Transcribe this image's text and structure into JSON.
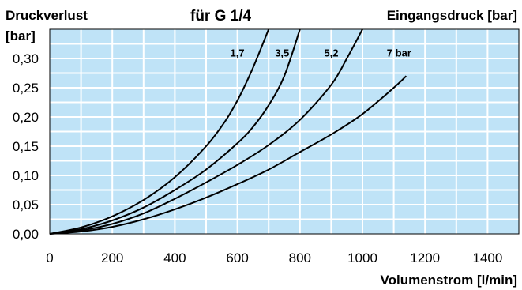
{
  "chart_data": {
    "type": "line",
    "title": "für G 1/4",
    "ylabel_line1": "Druckverlust",
    "ylabel_line2": "[bar]",
    "xlabel": "Volumenstrom [l/min]",
    "legend_title": "Eingangsdruck [bar]",
    "xlim": [
      0,
      1500
    ],
    "ylim": [
      0,
      0.35
    ],
    "x_ticks": [
      0,
      200,
      400,
      600,
      800,
      1000,
      1200,
      1400
    ],
    "x_tick_labels": [
      "0",
      "200",
      "400",
      "600",
      "800",
      "1000",
      "1200",
      "1400"
    ],
    "y_ticks": [
      0,
      0.05,
      0.1,
      0.15,
      0.2,
      0.25,
      0.3
    ],
    "y_tick_labels": [
      "0,00",
      "0,05",
      "0,10",
      "0,15",
      "0,20",
      "0,25",
      "0,30"
    ],
    "grid": true,
    "colors": {
      "plot_background": "#bfe3f7",
      "grid": "#ffffff",
      "curve": "#000000"
    },
    "series": [
      {
        "name": "1,7",
        "label": "1,7",
        "label_at": [
          600,
          0.31
        ],
        "x": [
          0,
          100,
          200,
          300,
          400,
          500,
          560,
          600,
          640,
          670,
          700
        ],
        "y": [
          0,
          0.011,
          0.03,
          0.058,
          0.097,
          0.15,
          0.192,
          0.228,
          0.272,
          0.31,
          0.35
        ]
      },
      {
        "name": "3,5",
        "label": "3,5",
        "label_at": [
          743,
          0.31
        ],
        "x": [
          0,
          100,
          200,
          300,
          400,
          500,
          600,
          650,
          700,
          750,
          800
        ],
        "y": [
          0,
          0.008,
          0.023,
          0.045,
          0.075,
          0.11,
          0.155,
          0.183,
          0.22,
          0.27,
          0.35
        ]
      },
      {
        "name": "5,2",
        "label": "5,2",
        "label_at": [
          900,
          0.31
        ],
        "x": [
          0,
          100,
          200,
          300,
          400,
          500,
          600,
          700,
          800,
          900,
          950,
          1000
        ],
        "y": [
          0,
          0.006,
          0.017,
          0.035,
          0.06,
          0.088,
          0.118,
          0.152,
          0.195,
          0.255,
          0.3,
          0.35
        ]
      },
      {
        "name": "7",
        "label": "7 bar",
        "label_at": [
          1117,
          0.31
        ],
        "x": [
          0,
          100,
          200,
          300,
          400,
          500,
          600,
          700,
          800,
          900,
          1000,
          1100,
          1140
        ],
        "y": [
          0,
          0.004,
          0.012,
          0.025,
          0.042,
          0.062,
          0.085,
          0.11,
          0.14,
          0.17,
          0.205,
          0.25,
          0.27
        ]
      }
    ]
  }
}
